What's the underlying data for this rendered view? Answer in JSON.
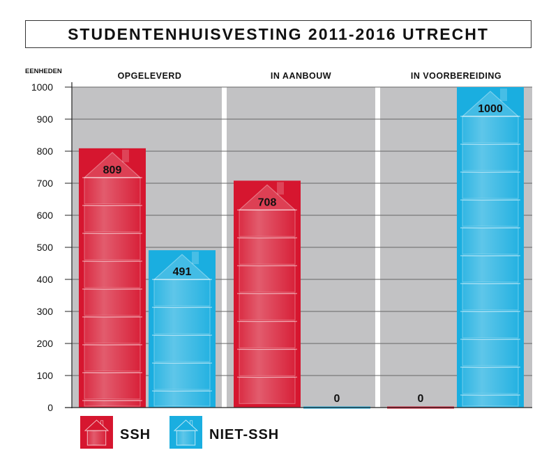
{
  "chart_data": {
    "type": "bar",
    "title": "STUDENTENHUISVESTING 2011-2016 UTRECHT",
    "ylabel": "EENHEDEN",
    "ylim": [
      0,
      1000
    ],
    "yticks": [
      0,
      100,
      200,
      300,
      400,
      500,
      600,
      700,
      800,
      900,
      1000
    ],
    "categories": [
      "OPGELEVERD",
      "IN AANBOUW",
      "IN VOORBEREIDING"
    ],
    "series": [
      {
        "name": "SSH",
        "color": "#d6162f",
        "values": [
          809,
          708,
          0
        ]
      },
      {
        "name": "NIET-SSH",
        "color": "#1aaee0",
        "values": [
          491,
          0,
          1000
        ]
      }
    ],
    "data_labels": [
      [
        "809",
        "708",
        "0"
      ],
      [
        "491",
        "0",
        "1000"
      ]
    ],
    "background_color": "#c2c2c4",
    "grid": true,
    "legend_position": "bottom-left",
    "icon": "house-stack-icon"
  }
}
